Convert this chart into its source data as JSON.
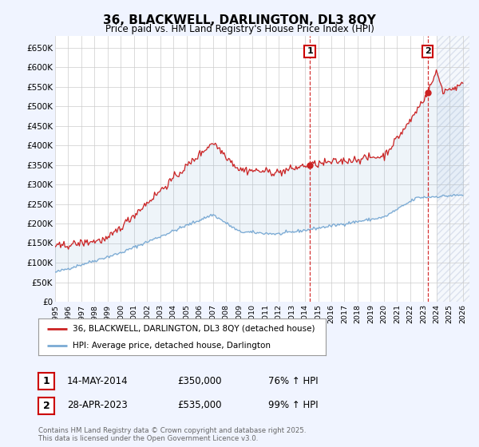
{
  "title": "36, BLACKWELL, DARLINGTON, DL3 8QY",
  "subtitle": "Price paid vs. HM Land Registry's House Price Index (HPI)",
  "ylim": [
    0,
    680000
  ],
  "yticks": [
    0,
    50000,
    100000,
    150000,
    200000,
    250000,
    300000,
    350000,
    400000,
    450000,
    500000,
    550000,
    600000,
    650000
  ],
  "ytick_labels": [
    "£0",
    "£50K",
    "£100K",
    "£150K",
    "£200K",
    "£250K",
    "£300K",
    "£350K",
    "£400K",
    "£450K",
    "£500K",
    "£550K",
    "£600K",
    "£650K"
  ],
  "hpi_color": "#7aaad4",
  "price_color": "#cc2222",
  "marker1_year": 2014.37,
  "marker1_price": 350000,
  "marker2_year": 2023.33,
  "marker2_price": 535000,
  "legend_line1": "36, BLACKWELL, DARLINGTON, DL3 8QY (detached house)",
  "legend_line2": "HPI: Average price, detached house, Darlington",
  "table_row1_date": "14-MAY-2014",
  "table_row1_price": "£350,000",
  "table_row1_hpi": "76% ↑ HPI",
  "table_row2_date": "28-APR-2023",
  "table_row2_price": "£535,000",
  "table_row2_hpi": "99% ↑ HPI",
  "footer": "Contains HM Land Registry data © Crown copyright and database right 2025.\nThis data is licensed under the Open Government Licence v3.0.",
  "bg_color": "#f0f4ff",
  "plot_bg": "#ffffff",
  "grid_color": "#cccccc",
  "hatch_color": "#d0d8e8",
  "xlim_start": 1995,
  "xlim_end": 2026.5,
  "hatch_start": 2024.0
}
